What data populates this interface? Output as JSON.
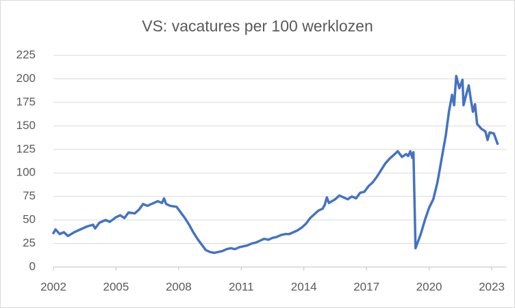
{
  "chart_data": {
    "type": "line",
    "title": "VS: vacatures per 100 werklozen",
    "x": [
      2002.0,
      2002.1,
      2002.3,
      2002.5,
      2002.7,
      2003.0,
      2003.3,
      2003.6,
      2003.9,
      2004.0,
      2004.2,
      2004.5,
      2004.7,
      2005.0,
      2005.2,
      2005.4,
      2005.6,
      2005.9,
      2006.1,
      2006.3,
      2006.5,
      2006.8,
      2007.0,
      2007.2,
      2007.3,
      2007.4,
      2007.6,
      2007.9,
      2008.1,
      2008.3,
      2008.5,
      2008.7,
      2008.9,
      2009.1,
      2009.3,
      2009.5,
      2009.7,
      2009.9,
      2010.1,
      2010.3,
      2010.5,
      2010.7,
      2010.9,
      2011.1,
      2011.3,
      2011.5,
      2011.7,
      2011.9,
      2012.1,
      2012.3,
      2012.5,
      2012.7,
      2012.9,
      2013.1,
      2013.3,
      2013.5,
      2013.7,
      2013.9,
      2014.1,
      2014.3,
      2014.5,
      2014.7,
      2014.9,
      2015.0,
      2015.1,
      2015.2,
      2015.5,
      2015.7,
      2015.9,
      2016.1,
      2016.3,
      2016.5,
      2016.7,
      2016.9,
      2017.1,
      2017.3,
      2017.5,
      2017.7,
      2017.9,
      2018.1,
      2018.3,
      2018.5,
      2018.7,
      2018.9,
      2019.0,
      2019.1,
      2019.2,
      2019.25,
      2019.35,
      2019.6,
      2019.8,
      2020.0,
      2020.2,
      2020.4,
      2020.6,
      2020.8,
      2020.95,
      2021.1,
      2021.2,
      2021.3,
      2021.45,
      2021.6,
      2021.65,
      2021.8,
      2021.9,
      2022.0,
      2022.1,
      2022.2,
      2022.3,
      2022.5,
      2022.7,
      2022.8,
      2022.9,
      2023.1,
      2023.28
    ],
    "values": [
      36,
      40,
      35,
      37,
      33,
      37,
      40,
      43,
      45,
      41,
      47,
      50,
      48,
      53,
      55,
      52,
      58,
      57,
      61,
      67,
      65,
      68,
      70,
      68,
      73,
      67,
      65,
      64,
      58,
      52,
      45,
      37,
      30,
      24,
      18,
      16,
      15,
      16,
      17,
      19,
      20,
      19,
      21,
      22,
      23,
      25,
      26,
      28,
      30,
      29,
      31,
      32,
      34,
      35,
      35,
      37,
      39,
      42,
      46,
      52,
      56,
      60,
      62,
      66,
      74,
      68,
      72,
      76,
      74,
      72,
      75,
      73,
      79,
      80,
      86,
      90,
      96,
      103,
      110,
      115,
      119,
      123,
      117,
      120,
      118,
      123,
      116,
      122,
      20,
      35,
      50,
      63,
      72,
      90,
      115,
      140,
      165,
      183,
      172,
      203,
      190,
      199,
      172,
      185,
      193,
      178,
      165,
      173,
      152,
      147,
      144,
      135,
      143,
      142,
      131
    ],
    "color": "#4472c4",
    "xlim": [
      2002,
      2023.7
    ],
    "xticks": [
      2002,
      2005,
      2008,
      2011,
      2014,
      2017,
      2020,
      2023
    ],
    "ylim": [
      0,
      225
    ],
    "yticks": [
      0,
      25,
      50,
      75,
      100,
      125,
      150,
      175,
      200,
      225
    ],
    "grid": true
  }
}
